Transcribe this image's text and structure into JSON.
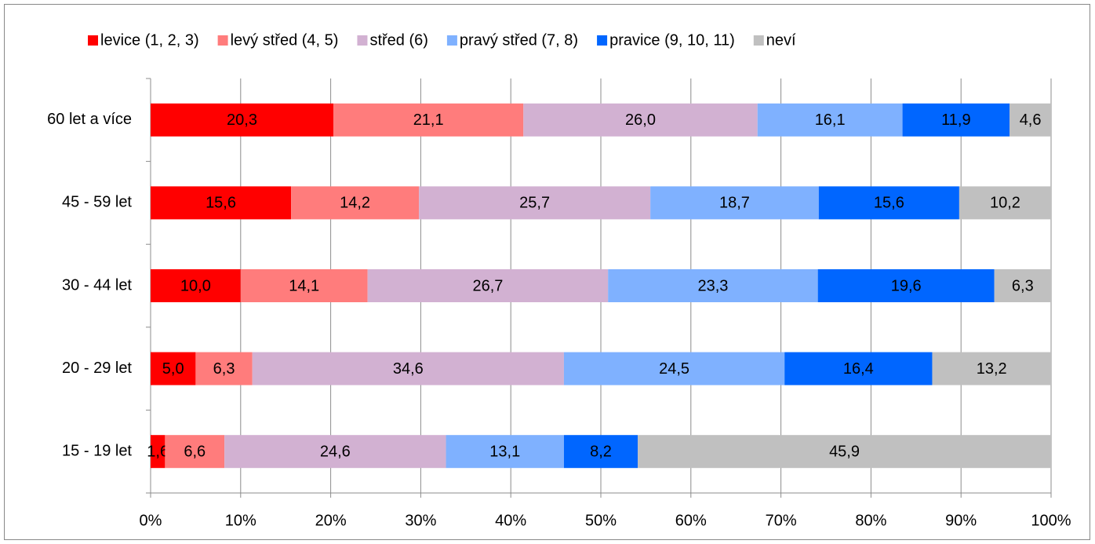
{
  "chart_data": {
    "type": "stacked-bar-horizontal",
    "categories": [
      "60 let a více",
      "45 - 59 let",
      "30 - 44 let",
      "20 - 29 let",
      "15 - 19 let"
    ],
    "series": [
      {
        "name": "levice (1, 2, 3)",
        "color": "#ff0000",
        "values": [
          20.3,
          15.6,
          10.0,
          5.0,
          1.6
        ],
        "value_labels": [
          "20,3",
          "15,6",
          "10,0",
          "5,0",
          "1,6"
        ]
      },
      {
        "name": "levý střed (4, 5)",
        "color": "#ff7c7c",
        "values": [
          21.1,
          14.2,
          14.1,
          6.3,
          6.6
        ],
        "value_labels": [
          "21,1",
          "14,2",
          "14,1",
          "6,3",
          "6,6"
        ]
      },
      {
        "name": "střed (6)",
        "color": "#d2b1d2",
        "values": [
          26.0,
          25.7,
          26.7,
          34.6,
          24.6
        ],
        "value_labels": [
          "26,0",
          "25,7",
          "26,7",
          "34,6",
          "24,6"
        ]
      },
      {
        "name": "pravý střed (7, 8)",
        "color": "#7fb1ff",
        "values": [
          16.1,
          18.7,
          23.3,
          24.5,
          13.1
        ],
        "value_labels": [
          "16,1",
          "18,7",
          "23,3",
          "24,5",
          "13,1"
        ]
      },
      {
        "name": "pravice (9, 10, 11)",
        "color": "#0066ff",
        "values": [
          11.9,
          15.6,
          19.6,
          16.4,
          8.2
        ],
        "value_labels": [
          "11,9",
          "15,6",
          "19,6",
          "16,4",
          "8,2"
        ]
      },
      {
        "name": "neví",
        "color": "#c0c0c0",
        "values": [
          4.6,
          10.2,
          6.3,
          13.2,
          45.9
        ],
        "value_labels": [
          "4,6",
          "10,2",
          "6,3",
          "13,2",
          "45,9"
        ]
      }
    ],
    "xlim": [
      0,
      100
    ],
    "xticks": [
      {
        "value": 0,
        "label": "0%"
      },
      {
        "value": 10,
        "label": "10%"
      },
      {
        "value": 20,
        "label": "20%"
      },
      {
        "value": 30,
        "label": "30%"
      },
      {
        "value": 40,
        "label": "40%"
      },
      {
        "value": 50,
        "label": "50%"
      },
      {
        "value": 60,
        "label": "60%"
      },
      {
        "value": 70,
        "label": "70%"
      },
      {
        "value": 80,
        "label": "80%"
      },
      {
        "value": 90,
        "label": "90%"
      },
      {
        "value": 100,
        "label": "100%"
      }
    ],
    "grid": true,
    "legend": "top"
  }
}
